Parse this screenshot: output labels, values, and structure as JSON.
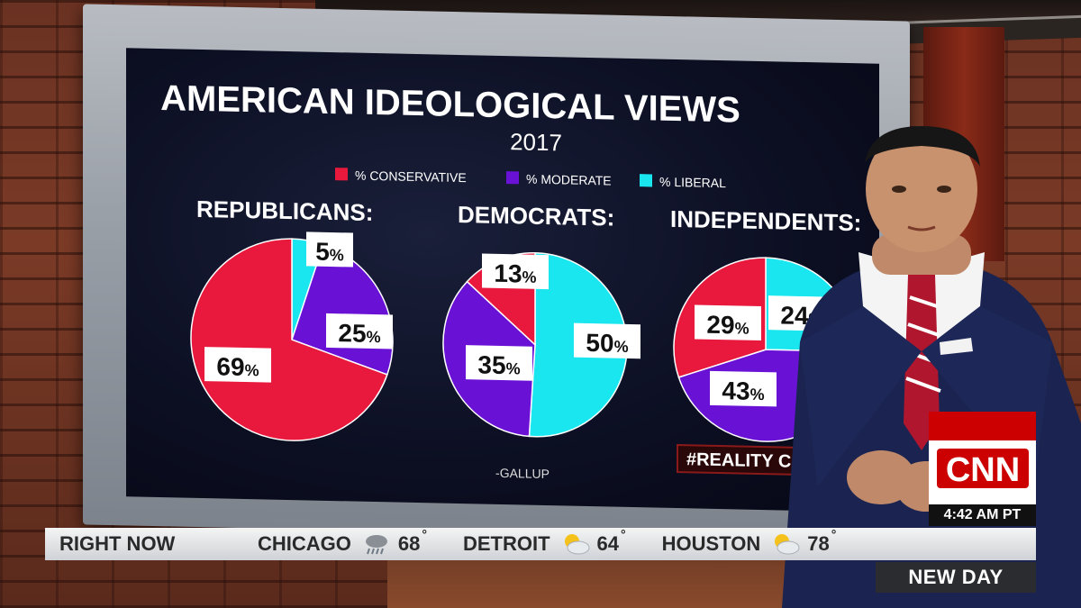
{
  "chart_data": {
    "type": "pie",
    "title": "AMERICAN IDEOLOGICAL VIEWS",
    "subtitle": "2017",
    "legend": [
      "% CONSERVATIVE",
      "% MODERATE",
      "% LIBERAL"
    ],
    "colors": {
      "conservative": "#e8193c",
      "moderate": "#6a11d6",
      "liberal": "#19e6ee"
    },
    "pies": [
      {
        "name": "REPUBLICANS:",
        "values": [
          69,
          25,
          5
        ]
      },
      {
        "name": "DEMOCRATS:",
        "values": [
          13,
          35,
          50
        ]
      },
      {
        "name": "INDEPENDENTS:",
        "values": [
          29,
          43,
          24
        ]
      }
    ],
    "source": "-GALLUP",
    "hashtag": "#REALITY C"
  },
  "ticker": {
    "label": "RIGHT NOW",
    "cities": [
      {
        "city": "CHICAGO",
        "temp": "68",
        "icon": "rain-cloud-icon"
      },
      {
        "city": "DETROIT",
        "temp": "64",
        "icon": "partly-cloudy-icon"
      },
      {
        "city": "HOUSTON",
        "temp": "78",
        "icon": "partly-cloudy-icon"
      }
    ],
    "degree": "°"
  },
  "network": {
    "logo": "CNN",
    "time": "4:42 AM PT",
    "show": "NEW DAY"
  }
}
